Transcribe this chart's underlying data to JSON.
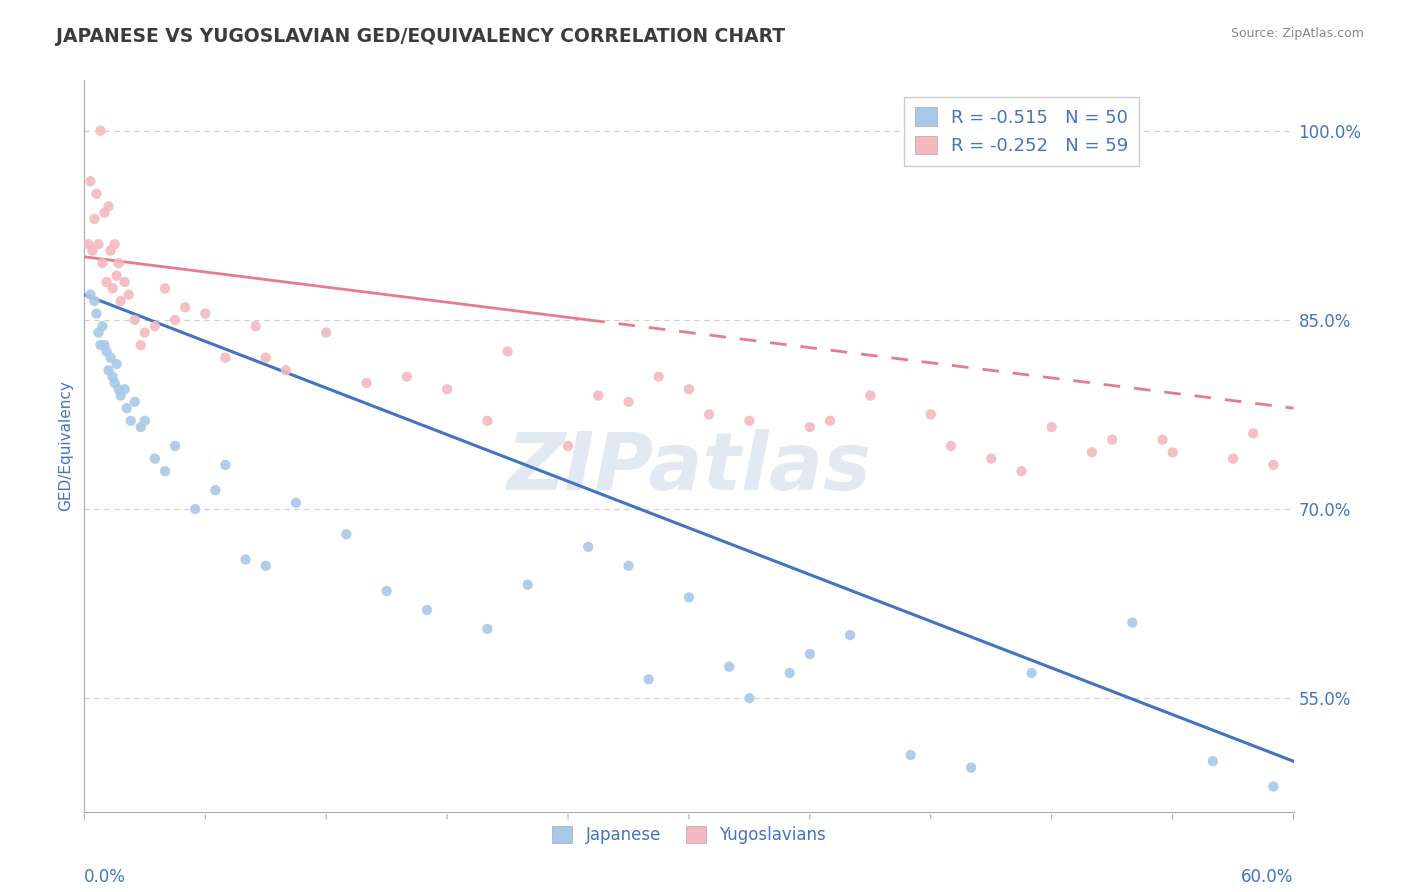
{
  "title": "JAPANESE VS YUGOSLAVIAN GED/EQUIVALENCY CORRELATION CHART",
  "source": "Source: ZipAtlas.com",
  "ylabel": "GED/Equivalency",
  "xlim": [
    0.0,
    60.0
  ],
  "ylim": [
    46.0,
    104.0
  ],
  "yticks": [
    55.0,
    70.0,
    85.0,
    100.0
  ],
  "legend_r1": "R = -0.515",
  "legend_n1": "N = 50",
  "legend_r2": "R = -0.252",
  "legend_n2": "N = 59",
  "watermark": "ZIPatlas",
  "blue_scatter_color": "#a8c8e8",
  "pink_scatter_color": "#f4b8c0",
  "blue_line_color": "#4472c4",
  "pink_line_color": "#e87b8a",
  "title_color": "#3c3c3c",
  "label_color": "#4472c4",
  "grid_color": "#cccccc",
  "background_color": "#ffffff",
  "japanese_x": [
    0.3,
    0.5,
    0.6,
    0.7,
    0.8,
    0.9,
    1.0,
    1.1,
    1.2,
    1.3,
    1.4,
    1.5,
    1.6,
    1.7,
    1.8,
    2.0,
    2.1,
    2.3,
    2.5,
    2.8,
    3.0,
    3.5,
    4.0,
    4.5,
    5.5,
    6.5,
    8.0,
    9.0,
    10.5,
    13.0,
    15.0,
    17.0,
    20.0,
    22.0,
    25.0,
    27.0,
    30.0,
    32.0,
    35.0,
    38.0,
    41.0,
    44.0,
    47.0,
    52.0,
    56.0,
    59.0,
    7.0,
    28.0,
    33.0,
    36.0
  ],
  "japanese_y": [
    87.0,
    86.5,
    85.5,
    84.0,
    83.0,
    84.5,
    83.0,
    82.5,
    81.0,
    82.0,
    80.5,
    80.0,
    81.5,
    79.5,
    79.0,
    79.5,
    78.0,
    77.0,
    78.5,
    76.5,
    77.0,
    74.0,
    73.0,
    75.0,
    70.0,
    71.5,
    66.0,
    65.5,
    70.5,
    68.0,
    63.5,
    62.0,
    60.5,
    64.0,
    67.0,
    65.5,
    63.0,
    57.5,
    57.0,
    60.0,
    50.5,
    49.5,
    57.0,
    61.0,
    50.0,
    48.0,
    73.5,
    56.5,
    55.0,
    58.5
  ],
  "yugo_x": [
    0.2,
    0.3,
    0.4,
    0.5,
    0.6,
    0.7,
    0.8,
    0.9,
    1.0,
    1.1,
    1.2,
    1.3,
    1.4,
    1.5,
    1.6,
    1.7,
    1.8,
    2.0,
    2.2,
    2.5,
    3.0,
    3.5,
    4.0,
    5.0,
    6.0,
    7.0,
    8.5,
    10.0,
    12.0,
    14.0,
    16.0,
    18.0,
    21.0,
    24.0,
    27.0,
    30.0,
    33.0,
    36.0,
    39.0,
    42.0,
    45.0,
    48.0,
    51.0,
    54.0,
    57.0,
    59.0,
    2.8,
    4.5,
    9.0,
    20.0,
    25.5,
    28.5,
    31.0,
    37.0,
    43.0,
    46.5,
    50.0,
    53.5,
    58.0
  ],
  "yugo_y": [
    91.0,
    96.0,
    90.5,
    93.0,
    95.0,
    91.0,
    100.0,
    89.5,
    93.5,
    88.0,
    94.0,
    90.5,
    87.5,
    91.0,
    88.5,
    89.5,
    86.5,
    88.0,
    87.0,
    85.0,
    84.0,
    84.5,
    87.5,
    86.0,
    85.5,
    82.0,
    84.5,
    81.0,
    84.0,
    80.0,
    80.5,
    79.5,
    82.5,
    75.0,
    78.5,
    79.5,
    77.0,
    76.5,
    79.0,
    77.5,
    74.0,
    76.5,
    75.5,
    74.5,
    74.0,
    73.5,
    83.0,
    85.0,
    82.0,
    77.0,
    79.0,
    80.5,
    77.5,
    77.0,
    75.0,
    73.0,
    74.5,
    75.5,
    76.0
  ],
  "pink_line_solid_end": 25.0
}
